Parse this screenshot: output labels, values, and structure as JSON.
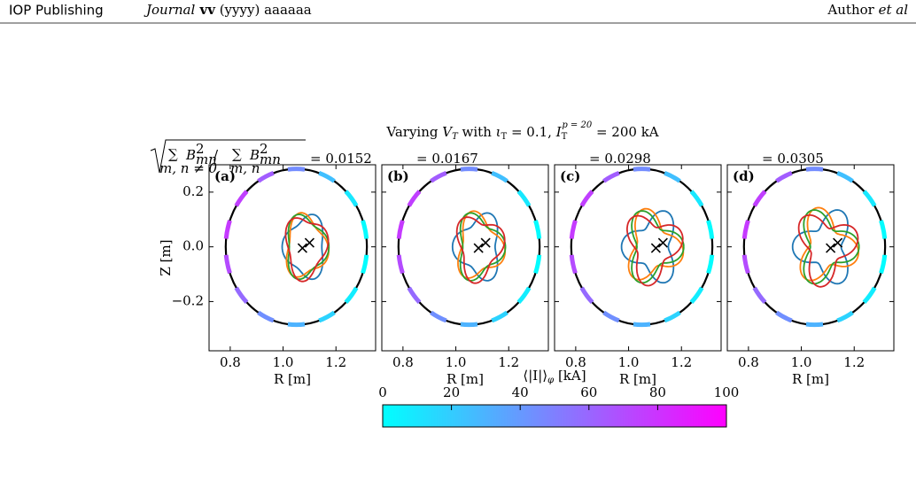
{
  "header": {
    "publisher": "IOP Publishing",
    "journal_parts": [
      "Journal",
      " vv",
      " (yyyy) aaaaaa"
    ],
    "author_parts": [
      "Author ",
      "et al"
    ]
  },
  "figure": {
    "title_parts": [
      "Varying ",
      "V",
      "T",
      " with ",
      "ι",
      "T",
      " = 0.1, ",
      "I",
      "T",
      "p = 20",
      " = 200 kA"
    ],
    "norm_parts": [
      "∑",
      "B",
      "2",
      "mn",
      " / ",
      "∑",
      "B",
      "2",
      "mn",
      "m, n ≠ 0",
      "m, n"
    ],
    "norm_values": [
      "= 0.0152",
      "= 0.0167",
      "= 0.0298",
      "= 0.0305"
    ],
    "panels": [
      "(a)",
      "(b)",
      "(c)",
      "(d)"
    ],
    "xlabel": "R [m]",
    "ylabel": "Z [m]",
    "xlim": [
      0.72,
      1.35
    ],
    "ylim": [
      -0.38,
      0.3
    ],
    "xticks": [
      0.8,
      {
        "value": 1.0,
        "label": "1.0"
      },
      1.2
    ],
    "yticks": [
      {
        "value": -0.2,
        "label": "−0.2"
      },
      {
        "value": 0,
        "label": "0.0"
      },
      0.2
    ],
    "colorbar": {
      "label_parts": [
        "⟨|I|⟩",
        "φ",
        " [kA]"
      ],
      "lim": [
        0,
        100
      ],
      "ticks": [
        0,
        20,
        40,
        60,
        80,
        100
      ],
      "colors": [
        "#00ffff",
        "#ff00ff"
      ]
    }
  }
}
